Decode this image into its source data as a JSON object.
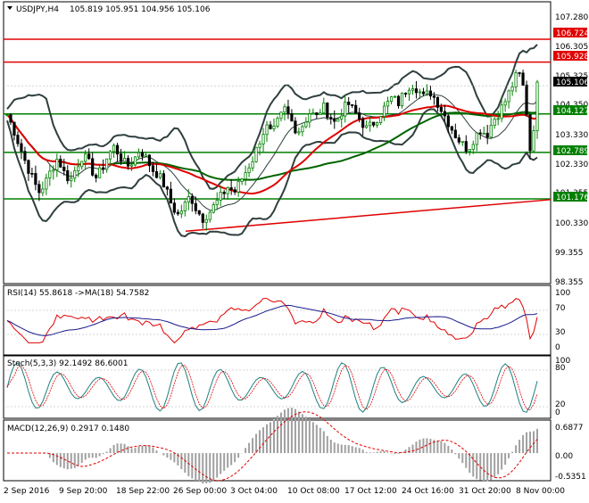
{
  "header": {
    "symbol": "USDJPY,H4",
    "ohlc": "105.819 105.951 104.956 105.106"
  },
  "price_axis": [
    "107.280",
    "106.305",
    "105.325",
    "104.350",
    "103.330",
    "102.330",
    "101.355",
    "100.330",
    "99.355",
    "98.355"
  ],
  "hlines": [
    {
      "value": 106.724,
      "label": "106.724",
      "color": "#e00000"
    },
    {
      "value": 105.928,
      "label": "105.928",
      "color": "#e00000"
    },
    {
      "value": 104.127,
      "label": "104.127",
      "color": "#008000"
    },
    {
      "value": 102.789,
      "label": "102.789",
      "color": "#008000"
    },
    {
      "value": 101.176,
      "label": "101.176",
      "color": "#008000"
    }
  ],
  "current_price": {
    "value": 105.106,
    "label": "105.106"
  },
  "time_axis": [
    "2 Sep 2016",
    "9 Sep 20:00",
    "18 Sep 22:00",
    "26 Sep 00:00",
    "3 Oct 04:00",
    "10 Oct 08:00",
    "17 Oct 12:00",
    "24 Oct 16:00",
    "31 Oct 20:00",
    "8 Nov 00:00"
  ],
  "rsi": {
    "label": "RSI(14) 55.8618 ->MA(18) 54.7582",
    "axis": [
      "100",
      "70",
      "30",
      "0"
    ]
  },
  "stoch": {
    "label": "Stoch(5,3,3) 92.1492 86.6001",
    "axis": [
      "100",
      "80",
      "20",
      "0"
    ]
  },
  "macd": {
    "label": "MACD(12,26,9) 0.2917 0.1480",
    "axis": [
      "0.6877",
      "0.00",
      "-0.5351"
    ]
  },
  "colors": {
    "up": "#008000",
    "down": "#000000",
    "ma_red": "#e00000",
    "ma_green": "#006400",
    "band": "#2f3f3f",
    "tag_red": "#e00000",
    "tag_green": "#008000",
    "tag_black": "#000000"
  },
  "chart_data": {
    "type": "candlestick",
    "ylim": [
      98.355,
      107.9
    ],
    "closes": [
      104.1,
      103.6,
      103.0,
      102.4,
      101.9,
      101.4,
      101.7,
      102.2,
      102.6,
      102.1,
      101.8,
      102.3,
      102.7,
      102.4,
      101.9,
      102.2,
      102.7,
      103.0,
      102.6,
      102.3,
      102.5,
      102.9,
      102.6,
      102.2,
      102.0,
      101.6,
      101.0,
      100.6,
      100.9,
      101.3,
      100.8,
      100.5,
      100.7,
      101.0,
      101.3,
      101.6,
      101.4,
      101.8,
      102.2,
      102.6,
      103.2,
      103.7,
      103.4,
      103.9,
      104.3,
      103.9,
      103.5,
      103.8,
      104.2,
      104.0,
      104.4,
      104.1,
      103.8,
      104.2,
      104.5,
      104.2,
      103.9,
      103.6,
      103.8,
      104.1,
      104.4,
      104.7,
      104.5,
      104.9,
      105.2,
      105.0,
      104.7,
      104.9,
      104.6,
      104.2,
      103.8,
      103.4,
      103.1,
      102.9,
      103.3,
      103.6,
      103.4,
      103.9,
      104.2,
      104.6,
      105.1,
      105.6,
      104.9,
      102.6,
      105.1
    ]
  }
}
